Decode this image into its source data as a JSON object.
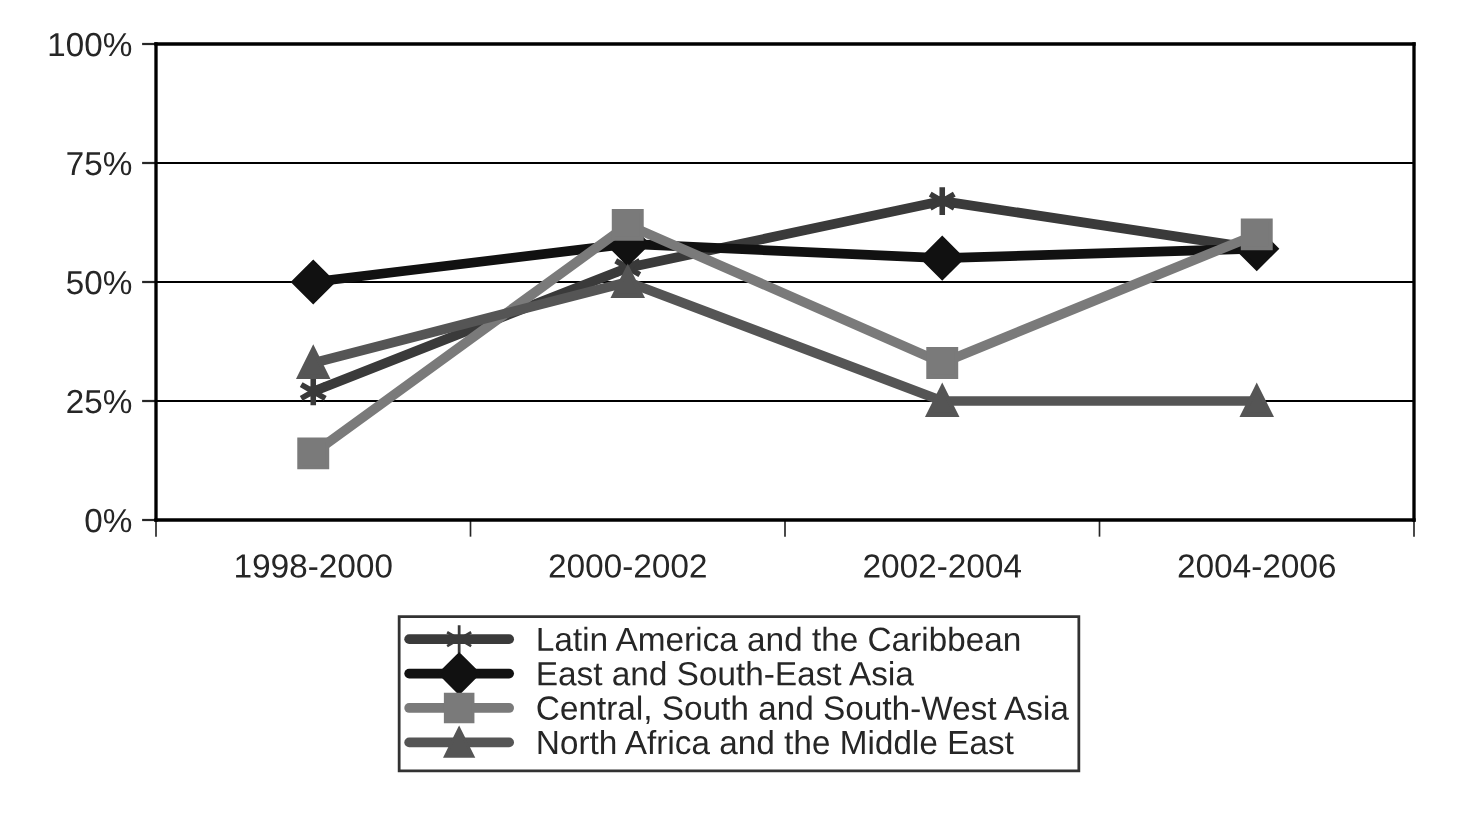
{
  "chart_data": {
    "type": "line",
    "categories": [
      "1998-2000",
      "2000-2002",
      "2002-2004",
      "2004-2006"
    ],
    "series": [
      {
        "name": "Latin America and the Caribbean",
        "color": "#3a3a3a",
        "marker": "cross",
        "values": [
          27,
          53,
          67,
          57
        ]
      },
      {
        "name": "East and South-East Asia",
        "color": "#111111",
        "marker": "diamond",
        "values": [
          50,
          58,
          55,
          57
        ]
      },
      {
        "name": "Central, South and South-West Asia",
        "color": "#7a7a7a",
        "marker": "square",
        "values": [
          14,
          62,
          33,
          60
        ]
      },
      {
        "name": "North Africa and the Middle East",
        "color": "#555555",
        "marker": "triangle",
        "values": [
          33,
          50,
          25,
          25
        ]
      }
    ],
    "ylim": [
      0,
      100
    ],
    "yticks": [
      {
        "value": 0,
        "label": "0%"
      },
      {
        "value": 25,
        "label": "25%"
      },
      {
        "value": 50,
        "label": "50%"
      },
      {
        "value": 75,
        "label": "75%"
      },
      {
        "value": 100,
        "label": "100%"
      }
    ],
    "grid": "y",
    "legend": "bottom",
    "line_style": "solid"
  }
}
